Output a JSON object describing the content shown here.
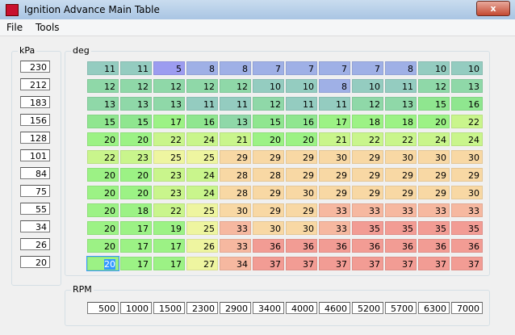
{
  "window": {
    "title": "Ignition Advance Main Table"
  },
  "menu": [
    "File",
    "Tools"
  ],
  "kpa": {
    "label": "kPa",
    "values": [
      230,
      212,
      183,
      156,
      128,
      101,
      84,
      75,
      55,
      34,
      26,
      20
    ]
  },
  "table": {
    "label": "deg",
    "rows": [
      [
        11,
        11,
        5,
        8,
        8,
        7,
        7,
        7,
        7,
        8,
        10,
        10
      ],
      [
        12,
        12,
        12,
        12,
        12,
        10,
        10,
        8,
        10,
        11,
        12,
        13
      ],
      [
        13,
        13,
        13,
        11,
        11,
        12,
        11,
        11,
        12,
        13,
        15,
        16
      ],
      [
        15,
        15,
        17,
        16,
        13,
        15,
        16,
        17,
        18,
        18,
        20,
        22
      ],
      [
        20,
        20,
        22,
        24,
        21,
        20,
        20,
        21,
        22,
        22,
        24,
        24
      ],
      [
        22,
        23,
        25,
        25,
        29,
        29,
        29,
        30,
        29,
        30,
        30,
        30
      ],
      [
        20,
        20,
        23,
        24,
        28,
        28,
        29,
        29,
        29,
        29,
        29,
        29
      ],
      [
        20,
        20,
        23,
        24,
        28,
        29,
        30,
        29,
        29,
        29,
        29,
        30
      ],
      [
        20,
        18,
        22,
        25,
        30,
        29,
        29,
        33,
        33,
        33,
        33,
        33
      ],
      [
        20,
        17,
        19,
        25,
        33,
        30,
        30,
        33,
        35,
        35,
        35,
        35
      ],
      [
        20,
        17,
        17,
        26,
        33,
        36,
        36,
        36,
        36,
        36,
        36,
        36
      ],
      [
        20,
        17,
        17,
        27,
        34,
        37,
        37,
        37,
        37,
        37,
        37,
        37
      ]
    ]
  },
  "rpm": {
    "label": "RPM",
    "values": [
      500,
      1000,
      1500,
      2300,
      2900,
      3400,
      4000,
      4600,
      5200,
      5700,
      6300,
      7000
    ]
  }
}
